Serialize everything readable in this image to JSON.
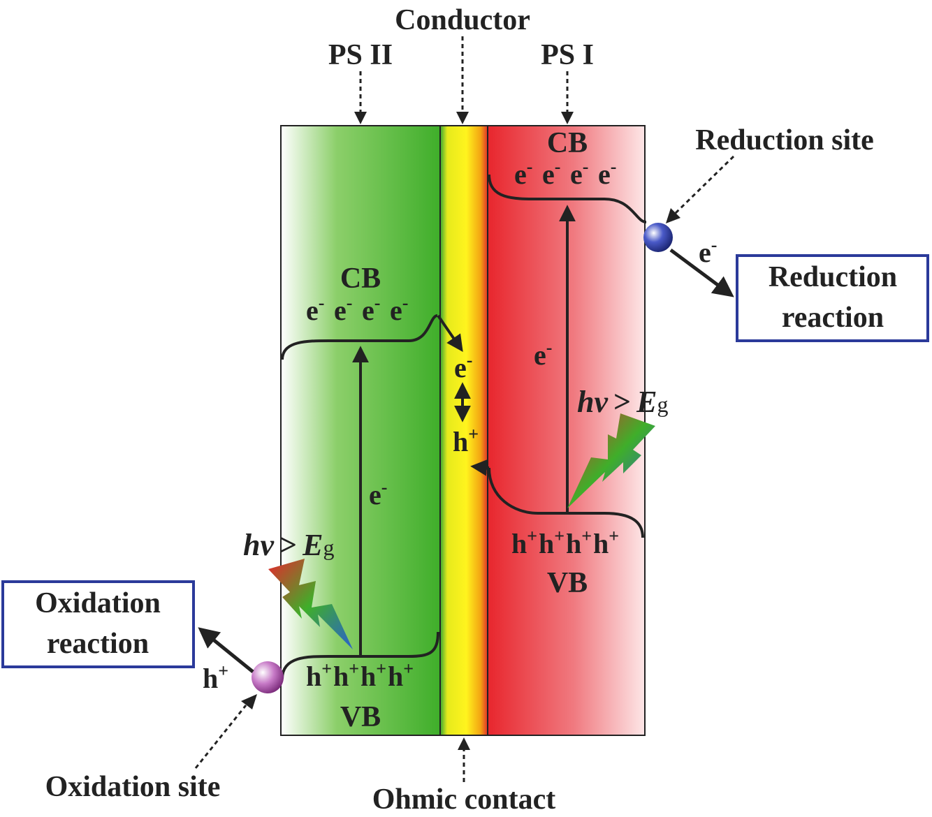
{
  "labels": {
    "conductor": "Conductor",
    "ps2": "PS II",
    "ps1": "PS I",
    "ohmic": "Ohmic contact",
    "reduction_site": "Reduction site",
    "oxidation_site": "Oxidation site"
  },
  "ps2": {
    "cb": "CB",
    "electrons": [
      "e",
      "e",
      "e",
      "e"
    ],
    "vb": "VB",
    "holes": [
      "h",
      "h",
      "h",
      "h"
    ],
    "transition_carrier": "e",
    "photon_hv": "hv",
    "photon_gt": ">",
    "photon_E": "E",
    "photon_sub": "g"
  },
  "ps1": {
    "cb": "CB",
    "electrons": [
      "e",
      "e",
      "e",
      "e"
    ],
    "vb": "VB",
    "holes": [
      "h",
      "h",
      "h",
      "h"
    ],
    "transition_carrier": "e",
    "photon_hv": "hv",
    "photon_gt": ">",
    "photon_E": "E",
    "photon_sub": "g"
  },
  "conductor_carriers": {
    "electron": "e",
    "hole": "h"
  },
  "charges": {
    "minus": "-",
    "plus": "+"
  },
  "reduction": {
    "carrier": "e",
    "box_line1": "Reduction",
    "box_line2": "reaction"
  },
  "oxidation": {
    "carrier": "h",
    "box_line1": "Oxidation",
    "box_line2": "reaction"
  },
  "colors": {
    "ps2_green": "#3fae2a",
    "ps1_red": "#e8262d",
    "conductor_yellow": "#f7ef1e",
    "box_border": "#2b3a9a",
    "oxidation_site": "#b04ab0",
    "reduction_site": "#2a3a9c"
  }
}
